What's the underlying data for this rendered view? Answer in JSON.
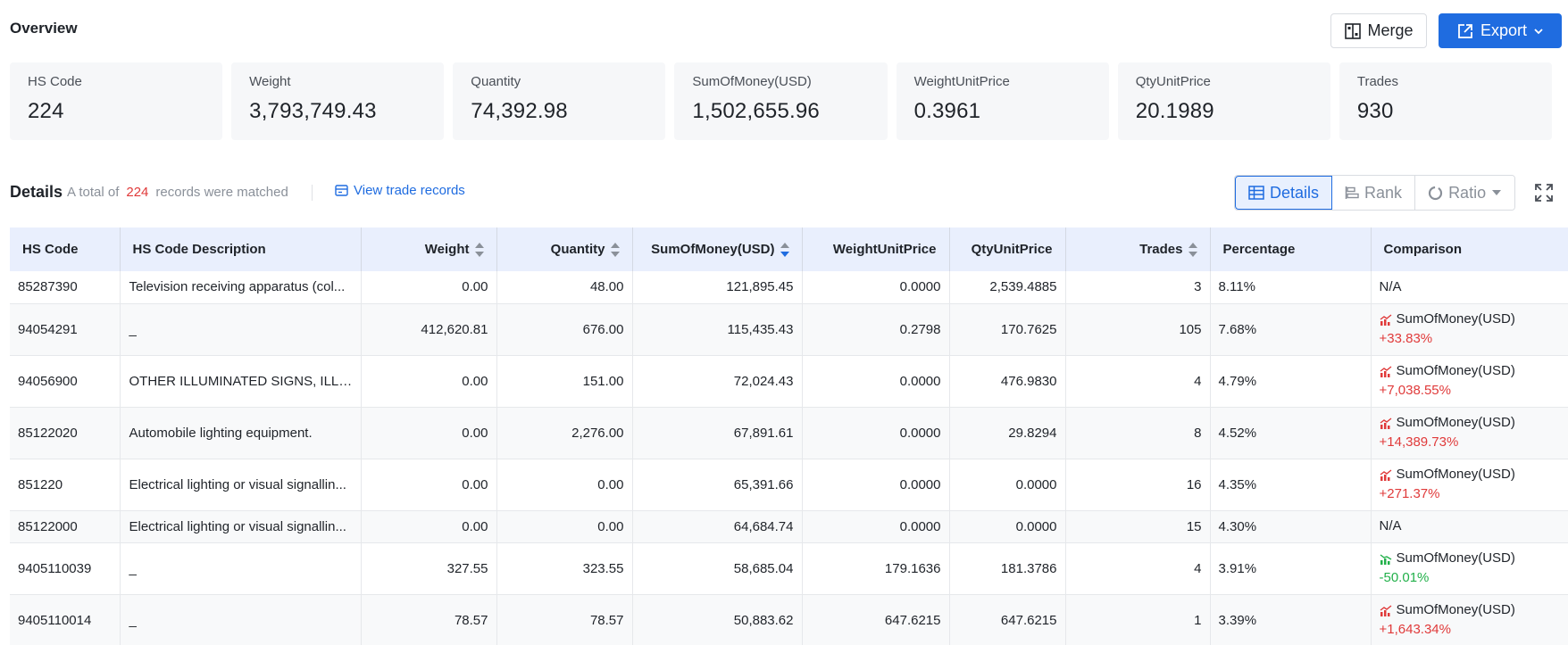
{
  "overview": {
    "title": "Overview",
    "merge_label": "Merge",
    "export_label": "Export",
    "colors": {
      "primary": "#1f6ce0",
      "increase": "#e03a3a",
      "decrease": "#22b04a"
    }
  },
  "stats": [
    {
      "label": "HS Code",
      "value": "224"
    },
    {
      "label": "Weight",
      "value": "3,793,749.43"
    },
    {
      "label": "Quantity",
      "value": "74,392.98"
    },
    {
      "label": "SumOfMoney(USD)",
      "value": "1,502,655.96"
    },
    {
      "label": "WeightUnitPrice",
      "value": "0.3961"
    },
    {
      "label": "QtyUnitPrice",
      "value": "20.1989"
    },
    {
      "label": "Trades",
      "value": "930"
    }
  ],
  "details": {
    "title": "Details",
    "sub_prefix": "A total of",
    "count": "224",
    "sub_suffix": "records were matched",
    "view_link": "View trade records",
    "views": [
      "Details",
      "Rank",
      "Ratio"
    ]
  },
  "table": {
    "headers": [
      "HS Code",
      "HS Code Description",
      "Weight",
      "Quantity",
      "SumOfMoney(USD)",
      "WeightUnitPrice",
      "QtyUnitPrice",
      "Trades",
      "Percentage",
      "Comparison"
    ],
    "rows": [
      {
        "code": "85287390",
        "desc": "Television receiving apparatus (col...",
        "weight": "0.00",
        "qty": "48.00",
        "sum": "121,895.45",
        "wup": "0.0000",
        "qup": "2,539.4885",
        "trades": "3",
        "pct": "8.11%",
        "cmp_label": "N/A",
        "cmp_pct": "",
        "cmp_dir": "none"
      },
      {
        "code": "94054291",
        "desc": "_",
        "weight": "412,620.81",
        "qty": "676.00",
        "sum": "115,435.43",
        "wup": "0.2798",
        "qup": "170.7625",
        "trades": "105",
        "pct": "7.68%",
        "cmp_label": "SumOfMoney(USD)",
        "cmp_pct": "+33.83%",
        "cmp_dir": "up"
      },
      {
        "code": "94056900",
        "desc": "OTHER ILLUMINATED SIGNS, ILLU...",
        "weight": "0.00",
        "qty": "151.00",
        "sum": "72,024.43",
        "wup": "0.0000",
        "qup": "476.9830",
        "trades": "4",
        "pct": "4.79%",
        "cmp_label": "SumOfMoney(USD)",
        "cmp_pct": "+7,038.55%",
        "cmp_dir": "up"
      },
      {
        "code": "85122020",
        "desc": "Automobile lighting equipment.",
        "weight": "0.00",
        "qty": "2,276.00",
        "sum": "67,891.61",
        "wup": "0.0000",
        "qup": "29.8294",
        "trades": "8",
        "pct": "4.52%",
        "cmp_label": "SumOfMoney(USD)",
        "cmp_pct": "+14,389.73%",
        "cmp_dir": "up"
      },
      {
        "code": "851220",
        "desc": "Electrical lighting or visual signallin...",
        "weight": "0.00",
        "qty": "0.00",
        "sum": "65,391.66",
        "wup": "0.0000",
        "qup": "0.0000",
        "trades": "16",
        "pct": "4.35%",
        "cmp_label": "SumOfMoney(USD)",
        "cmp_pct": "+271.37%",
        "cmp_dir": "up"
      },
      {
        "code": "85122000",
        "desc": "Electrical lighting or visual signallin...",
        "weight": "0.00",
        "qty": "0.00",
        "sum": "64,684.74",
        "wup": "0.0000",
        "qup": "0.0000",
        "trades": "15",
        "pct": "4.30%",
        "cmp_label": "N/A",
        "cmp_pct": "",
        "cmp_dir": "none"
      },
      {
        "code": "9405110039",
        "desc": "_",
        "weight": "327.55",
        "qty": "323.55",
        "sum": "58,685.04",
        "wup": "179.1636",
        "qup": "181.3786",
        "trades": "4",
        "pct": "3.91%",
        "cmp_label": "SumOfMoney(USD)",
        "cmp_pct": "-50.01%",
        "cmp_dir": "down"
      },
      {
        "code": "9405110014",
        "desc": "_",
        "weight": "78.57",
        "qty": "78.57",
        "sum": "50,883.62",
        "wup": "647.6215",
        "qup": "647.6215",
        "trades": "1",
        "pct": "3.39%",
        "cmp_label": "SumOfMoney(USD)",
        "cmp_pct": "+1,643.34%",
        "cmp_dir": "up"
      }
    ]
  }
}
